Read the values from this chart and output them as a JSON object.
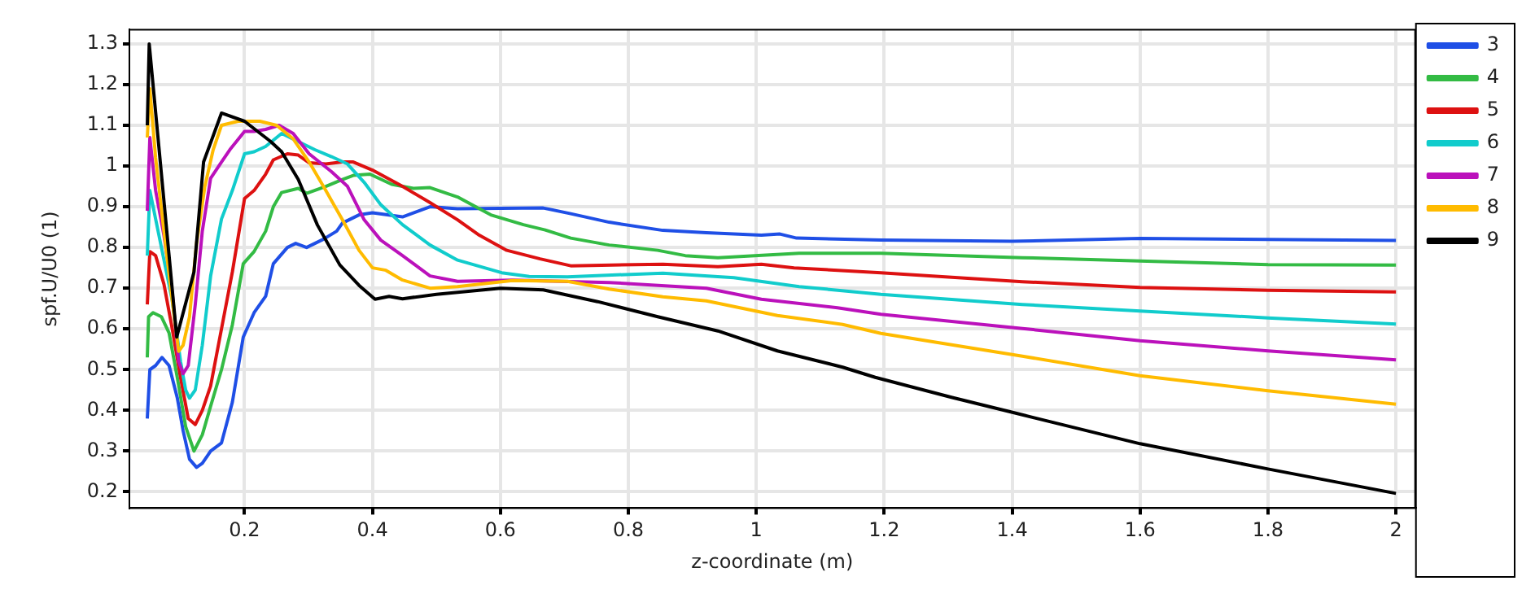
{
  "chart_data": {
    "type": "line",
    "xlabel": "z-coordinate (m)",
    "ylabel": "spf.U/U0 (1)",
    "xlim": [
      0.02,
      2.03
    ],
    "ylim": [
      0.16,
      1.335
    ],
    "xticks": [
      0.2,
      0.4,
      0.6,
      0.8,
      1,
      1.2,
      1.4,
      1.6,
      1.8,
      2
    ],
    "yticks": [
      0.2,
      0.3,
      0.4,
      0.5,
      0.6,
      0.7,
      0.8,
      0.9,
      1,
      1.1,
      1.2,
      1.3
    ],
    "grid": true,
    "legend": "top right",
    "marker": "none",
    "line_style": "solid",
    "series": [
      {
        "name": "3",
        "color": "#1f4fe6",
        "x": [
          0.048,
          0.052,
          0.061,
          0.071,
          0.082,
          0.095,
          0.104,
          0.114,
          0.125,
          0.134,
          0.147,
          0.164,
          0.181,
          0.198,
          0.215,
          0.233,
          0.245,
          0.267,
          0.28,
          0.297,
          0.323,
          0.344,
          0.353,
          0.379,
          0.4,
          0.447,
          0.49,
          0.533,
          0.667,
          0.71,
          0.77,
          0.854,
          0.922,
          1.008,
          1.037,
          1.063,
          1.195,
          1.4,
          1.6,
          2.0
        ],
        "values": [
          0.38,
          0.5,
          0.51,
          0.53,
          0.51,
          0.43,
          0.35,
          0.28,
          0.26,
          0.27,
          0.3,
          0.32,
          0.42,
          0.58,
          0.64,
          0.68,
          0.76,
          0.8,
          0.81,
          0.8,
          0.82,
          0.84,
          0.86,
          0.88,
          0.885,
          0.875,
          0.9,
          0.895,
          0.897,
          0.883,
          0.862,
          0.842,
          0.836,
          0.83,
          0.833,
          0.823,
          0.818,
          0.815,
          0.822,
          0.817
        ]
      },
      {
        "name": "4",
        "color": "#33bb44",
        "x": [
          0.048,
          0.05,
          0.057,
          0.07,
          0.082,
          0.095,
          0.108,
          0.121,
          0.134,
          0.147,
          0.164,
          0.181,
          0.198,
          0.215,
          0.233,
          0.245,
          0.258,
          0.284,
          0.297,
          0.327,
          0.353,
          0.37,
          0.396,
          0.43,
          0.464,
          0.49,
          0.533,
          0.585,
          0.636,
          0.67,
          0.71,
          0.77,
          0.846,
          0.889,
          0.94,
          1.067,
          1.195,
          1.416,
          1.6,
          1.8,
          2.0
        ],
        "values": [
          0.53,
          0.63,
          0.64,
          0.63,
          0.59,
          0.48,
          0.36,
          0.3,
          0.34,
          0.41,
          0.5,
          0.61,
          0.76,
          0.79,
          0.84,
          0.9,
          0.935,
          0.945,
          0.933,
          0.95,
          0.967,
          0.977,
          0.98,
          0.955,
          0.945,
          0.947,
          0.924,
          0.88,
          0.856,
          0.843,
          0.823,
          0.806,
          0.793,
          0.78,
          0.775,
          0.786,
          0.786,
          0.775,
          0.767,
          0.758,
          0.757
        ]
      },
      {
        "name": "5",
        "color": "#dd1111",
        "x": [
          0.048,
          0.052,
          0.061,
          0.074,
          0.087,
          0.1,
          0.112,
          0.123,
          0.134,
          0.147,
          0.164,
          0.181,
          0.2,
          0.215,
          0.233,
          0.245,
          0.267,
          0.284,
          0.301,
          0.327,
          0.353,
          0.37,
          0.4,
          0.447,
          0.49,
          0.533,
          0.567,
          0.61,
          0.662,
          0.71,
          0.854,
          0.94,
          1.008,
          1.059,
          1.195,
          1.416,
          1.6,
          1.8,
          2.0
        ],
        "values": [
          0.66,
          0.79,
          0.78,
          0.71,
          0.6,
          0.48,
          0.38,
          0.365,
          0.4,
          0.46,
          0.6,
          0.74,
          0.92,
          0.94,
          0.98,
          1.015,
          1.03,
          1.027,
          1.008,
          1.005,
          1.01,
          1.01,
          0.99,
          0.95,
          0.91,
          0.868,
          0.83,
          0.793,
          0.772,
          0.755,
          0.759,
          0.753,
          0.759,
          0.75,
          0.738,
          0.716,
          0.702,
          0.695,
          0.691
        ]
      },
      {
        "name": "6",
        "color": "#11cccc",
        "x": [
          0.048,
          0.052,
          0.061,
          0.074,
          0.087,
          0.1,
          0.108,
          0.114,
          0.123,
          0.134,
          0.147,
          0.164,
          0.181,
          0.2,
          0.215,
          0.233,
          0.258,
          0.284,
          0.31,
          0.336,
          0.361,
          0.387,
          0.413,
          0.447,
          0.49,
          0.533,
          0.602,
          0.645,
          0.705,
          0.854,
          0.965,
          1.067,
          1.195,
          1.416,
          1.6,
          1.8,
          2.0
        ],
        "values": [
          0.78,
          0.94,
          0.87,
          0.77,
          0.67,
          0.52,
          0.45,
          0.43,
          0.45,
          0.56,
          0.73,
          0.87,
          0.94,
          1.03,
          1.035,
          1.048,
          1.08,
          1.06,
          1.04,
          1.023,
          1.005,
          0.96,
          0.905,
          0.856,
          0.806,
          0.769,
          0.738,
          0.729,
          0.728,
          0.737,
          0.726,
          0.704,
          0.685,
          0.66,
          0.644,
          0.627,
          0.612
        ]
      },
      {
        "name": "7",
        "color": "#bb11bb",
        "x": [
          0.048,
          0.052,
          0.061,
          0.074,
          0.087,
          0.097,
          0.104,
          0.112,
          0.123,
          0.134,
          0.147,
          0.164,
          0.177,
          0.2,
          0.215,
          0.233,
          0.254,
          0.276,
          0.301,
          0.336,
          0.361,
          0.387,
          0.413,
          0.447,
          0.49,
          0.533,
          0.619,
          0.77,
          0.922,
          1.008,
          1.127,
          1.195,
          1.416,
          1.6,
          1.8,
          2.0
        ],
        "values": [
          0.89,
          1.07,
          0.94,
          0.83,
          0.69,
          0.52,
          0.49,
          0.51,
          0.66,
          0.84,
          0.97,
          1.01,
          1.04,
          1.085,
          1.085,
          1.09,
          1.1,
          1.08,
          1.03,
          0.986,
          0.95,
          0.868,
          0.818,
          0.78,
          0.73,
          0.717,
          0.72,
          0.714,
          0.7,
          0.673,
          0.652,
          0.636,
          0.601,
          0.571,
          0.546,
          0.524
        ]
      },
      {
        "name": "8",
        "color": "#ffbb00",
        "x": [
          0.048,
          0.052,
          0.061,
          0.074,
          0.087,
          0.097,
          0.104,
          0.114,
          0.125,
          0.138,
          0.151,
          0.164,
          0.19,
          0.224,
          0.25,
          0.276,
          0.301,
          0.327,
          0.353,
          0.379,
          0.4,
          0.421,
          0.447,
          0.49,
          0.533,
          0.619,
          0.705,
          0.77,
          0.854,
          0.922,
          1.033,
          1.135,
          1.195,
          1.416,
          1.6,
          1.8,
          2.0
        ],
        "values": [
          1.07,
          1.19,
          1.02,
          0.84,
          0.67,
          0.545,
          0.56,
          0.63,
          0.81,
          0.95,
          1.04,
          1.1,
          1.11,
          1.11,
          1.1,
          1.067,
          1.01,
          0.94,
          0.868,
          0.793,
          0.75,
          0.744,
          0.72,
          0.7,
          0.704,
          0.719,
          0.717,
          0.698,
          0.679,
          0.669,
          0.633,
          0.611,
          0.589,
          0.533,
          0.485,
          0.448,
          0.415
        ]
      },
      {
        "name": "9",
        "color": "#000000",
        "x": [
          0.048,
          0.051,
          0.094,
          0.121,
          0.136,
          0.164,
          0.2,
          0.241,
          0.258,
          0.284,
          0.314,
          0.349,
          0.379,
          0.404,
          0.426,
          0.447,
          0.5,
          0.6,
          0.667,
          0.752,
          0.846,
          0.94,
          1.033,
          1.135,
          1.186,
          1.305,
          1.416,
          1.6,
          1.8,
          2.0
        ],
        "values": [
          1.1,
          1.3,
          0.58,
          0.74,
          1.01,
          1.13,
          1.11,
          1.06,
          1.035,
          0.967,
          0.855,
          0.757,
          0.707,
          0.673,
          0.68,
          0.674,
          0.685,
          0.7,
          0.696,
          0.667,
          0.63,
          0.595,
          0.546,
          0.506,
          0.481,
          0.432,
          0.389,
          0.318,
          0.256,
          0.196
        ]
      }
    ]
  }
}
